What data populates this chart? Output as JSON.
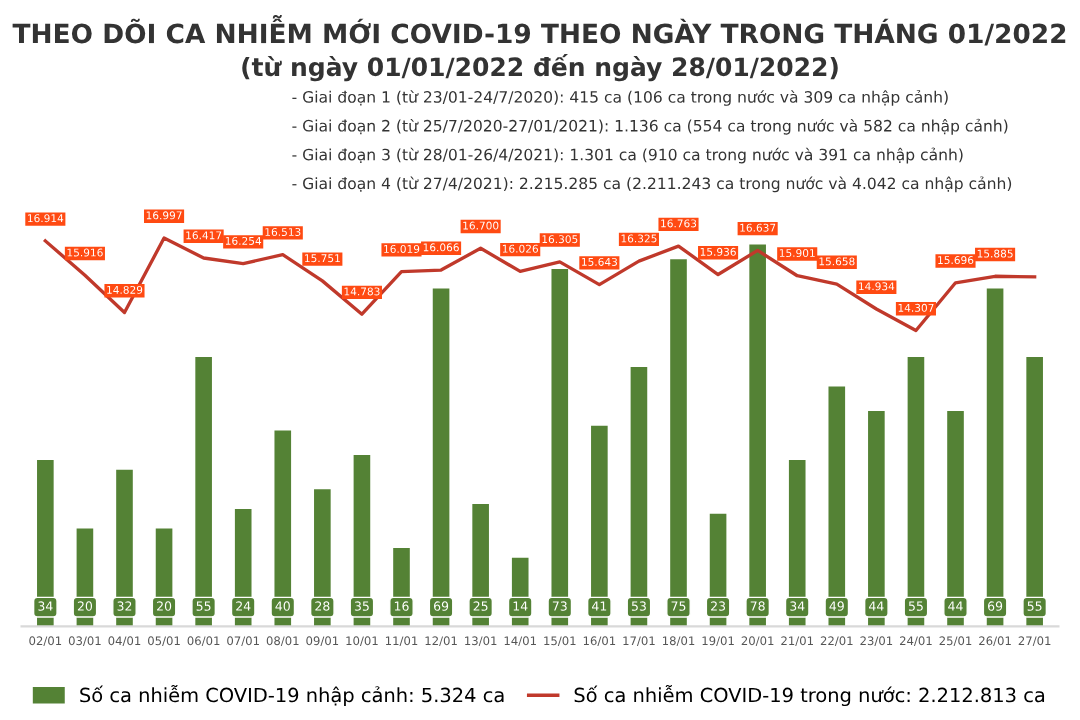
{
  "chart_data": {
    "type": "bar",
    "title": "THEO DÕI CA NHIỄM MỚI COVID-19 THEO NGÀY TRONG THÁNG 01/2022",
    "subtitle": "(từ ngày 01/01/2022 đến ngày 28/01/2022)",
    "annotations": [
      "- Giai đoạn 1 (từ 23/01-24/7/2020): 415 ca (106 ca trong nước và 309 ca nhập cảnh)",
      "- Giai đoạn 2 (từ 25/7/2020-27/01/2021): 1.136 ca (554 ca trong nước và 582 ca nhập cảnh)",
      "- Giai đoạn 3 (từ 28/01-26/4/2021): 1.301 ca (910 ca trong nước và 391 ca nhập cảnh)",
      "- Giai đoạn 4 (từ 27/4/2021): 2.215.285 ca (2.211.243 ca trong nước và 4.042 ca nhập cảnh)"
    ],
    "categories": [
      "02/01",
      "03/01",
      "04/01",
      "05/01",
      "06/01",
      "07/01",
      "08/01",
      "09/01",
      "10/01",
      "11/01",
      "12/01",
      "13/01",
      "14/01",
      "15/01",
      "16/01",
      "17/01",
      "18/01",
      "19/01",
      "20/01",
      "21/01",
      "22/01",
      "23/01",
      "24/01",
      "25/01",
      "26/01",
      "27/01"
    ],
    "series": [
      {
        "name": "Số ca nhiễm COVID-19 nhập cảnh: 5.324 ca",
        "color": "#548235",
        "values": [
          34,
          20,
          32,
          20,
          55,
          24,
          40,
          28,
          35,
          16,
          69,
          25,
          14,
          73,
          41,
          53,
          75,
          23,
          78,
          34,
          49,
          44,
          55,
          44,
          69,
          55
        ],
        "value_labels": [
          "34",
          "20",
          "32",
          "20",
          "55",
          "24",
          "40",
          "28",
          "35",
          "16",
          "69",
          "25",
          "14",
          "73",
          "41",
          "53",
          "75",
          "23",
          "78",
          "34",
          "49",
          "44",
          "55",
          "44",
          "69",
          "55"
        ]
      },
      {
        "name": "Số ca nhiễm COVID-19 trong nước: 2.212.813 ca",
        "type": "line",
        "axis": "y2",
        "color": "#c0392b",
        "values": [
          16914,
          15916,
          14829,
          16997,
          16417,
          16254,
          16513,
          15751,
          14783,
          16019,
          16066,
          16700,
          16026,
          16305,
          15643,
          16325,
          16763,
          15936,
          16637,
          15901,
          15658,
          14934,
          14307,
          15696,
          15885,
          15870
        ],
        "value_labels": [
          "16.914",
          "15.916",
          "14.829",
          "16.997",
          "16.417",
          "16.254",
          "16.513",
          "15.751",
          "14.783",
          "16.019",
          "16.066",
          "16.700",
          "16.026",
          "16.305",
          "15.643",
          "16.325",
          "16.763",
          "15.936",
          "16.637",
          "15.901",
          "15.658",
          "14.934",
          "14.307",
          "15.696",
          "15.885",
          null
        ]
      }
    ],
    "marker": "none",
    "legend": "bottom",
    "tick_labels": "x"
  }
}
